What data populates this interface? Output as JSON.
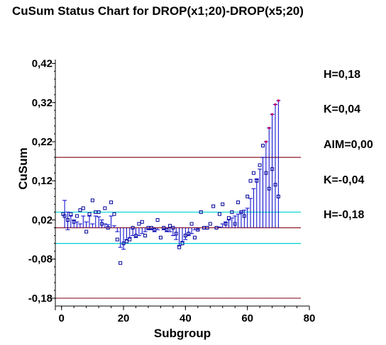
{
  "chart_data": {
    "type": "line",
    "title": "CuSum Status Chart for DROP(x1;20)-DROP(x5;20)",
    "xlabel": "Subgroup",
    "ylabel": "CuSum",
    "xlim": [
      -2,
      80
    ],
    "ylim": [
      -0.2,
      0.43
    ],
    "x_ticks": [
      0,
      20,
      40,
      60,
      80
    ],
    "x_tick_labels": [
      "0",
      "20",
      "40",
      "60",
      "80"
    ],
    "y_ticks": [
      -0.18,
      -0.08,
      0.02,
      0.12,
      0.22,
      0.32,
      0.42
    ],
    "y_tick_labels": [
      "-0,18",
      "-0,08",
      "0,02",
      "0,12",
      "0,22",
      "0,32",
      "0,42"
    ],
    "control_lines": [
      {
        "label": "H=0,18",
        "value": 0.18,
        "color": "#8b1a2b"
      },
      {
        "label": "K=0,04",
        "value": 0.04,
        "color": "#00d2d2"
      },
      {
        "label": "AIM=0,00",
        "value": 0.0,
        "color": "#8b1a2b"
      },
      {
        "label": "K=-0,04",
        "value": -0.04,
        "color": "#00d2d2"
      },
      {
        "label": "H=-0,18",
        "value": -0.18,
        "color": "#8b1a2b"
      }
    ],
    "series": [
      {
        "values_upper_x": [
          1,
          2,
          3,
          4,
          5,
          6,
          7,
          8,
          9,
          10,
          11,
          12,
          13,
          14,
          15,
          16,
          17,
          18,
          19,
          20,
          21,
          22,
          23,
          24,
          25,
          26,
          27,
          28,
          29,
          30,
          31,
          32,
          33,
          34,
          35,
          36,
          37,
          38,
          39,
          40,
          41,
          42,
          43,
          44,
          45,
          46,
          47,
          48,
          49,
          50,
          51,
          52,
          53,
          54,
          55,
          56,
          57,
          58,
          59,
          60,
          61,
          62,
          63,
          64,
          65,
          66,
          67,
          68,
          69,
          70
        ],
        "upper": [
          0.07,
          0.04,
          0.03,
          0.02,
          0.015,
          0.01,
          0.03,
          0.015,
          0.03,
          0.01,
          0.03,
          0.028,
          0.02,
          0.01,
          0.008,
          0.03,
          0.005,
          0.0,
          0.0,
          0.0,
          0.0,
          0.0,
          0.0,
          0.0,
          0.0,
          0.0,
          0.0,
          0.0,
          0.0,
          0.0,
          0.0,
          0.0,
          0.0,
          0.0,
          0.0,
          0.0,
          0.0,
          0.0,
          0.0,
          0.0,
          0.0,
          0.0,
          0.0,
          0.0,
          0.0,
          0.0,
          0.0,
          0.0,
          0.0,
          0.0,
          0.002,
          0.01,
          0.015,
          0.02,
          0.025,
          0.03,
          0.035,
          0.04,
          0.045,
          0.05,
          0.075,
          0.1,
          0.125,
          0.15,
          0.18,
          0.22,
          0.255,
          0.29,
          0.315,
          0.325
        ],
        "lower": [
          0.0,
          -0.005,
          0.0,
          0.0,
          0.0,
          0.0,
          0.0,
          0.0,
          0.0,
          0.0,
          0.0,
          0.0,
          0.0,
          0.0,
          0.0,
          0.0,
          0.0,
          -0.01,
          -0.05,
          -0.055,
          -0.03,
          -0.025,
          -0.02,
          -0.025,
          -0.02,
          -0.015,
          -0.01,
          -0.005,
          -0.005,
          -0.01,
          -0.005,
          0.0,
          -0.005,
          -0.01,
          -0.01,
          -0.02,
          -0.03,
          -0.045,
          -0.035,
          -0.03,
          -0.02,
          -0.015,
          -0.005,
          -0.005,
          0.0,
          0.0,
          0.0,
          0.0,
          0.0,
          0.0,
          0.0,
          0.0,
          0.0,
          0.0,
          0.0,
          0.0,
          0.0,
          0.0,
          0.0,
          0.0,
          0.0,
          0.0,
          0.0,
          0.0,
          0.0,
          0.0,
          0.0,
          0.0,
          0.0,
          0.0
        ]
      }
    ],
    "points": [
      [
        0.5,
        0.035
      ],
      [
        1,
        0.03
      ],
      [
        2,
        0.02
      ],
      [
        3,
        0.035
      ],
      [
        4,
        0.015
      ],
      [
        5,
        0.03
      ],
      [
        6,
        0.045
      ],
      [
        7,
        0.05
      ],
      [
        8,
        -0.01
      ],
      [
        9,
        0.035
      ],
      [
        10,
        0.07
      ],
      [
        11,
        0.04
      ],
      [
        12,
        0.04
      ],
      [
        13,
        0.01
      ],
      [
        14,
        0.05
      ],
      [
        15,
        0.0
      ],
      [
        16,
        0.065
      ],
      [
        17,
        0.035
      ],
      [
        18,
        -0.03
      ],
      [
        19,
        -0.09
      ],
      [
        20,
        -0.04
      ],
      [
        21,
        -0.035
      ],
      [
        22,
        -0.03
      ],
      [
        23,
        0.0
      ],
      [
        24,
        -0.02
      ],
      [
        25,
        0.01
      ],
      [
        26,
        0.015
      ],
      [
        27,
        -0.02
      ],
      [
        28,
        0.0
      ],
      [
        29,
        0.0
      ],
      [
        30,
        -0.005
      ],
      [
        31,
        0.02
      ],
      [
        32,
        -0.025
      ],
      [
        33,
        0.0
      ],
      [
        34,
        -0.005
      ],
      [
        35,
        0.005
      ],
      [
        36,
        0.0
      ],
      [
        37,
        -0.015
      ],
      [
        38,
        -0.05
      ],
      [
        39,
        -0.04
      ],
      [
        40,
        -0.02
      ],
      [
        41,
        -0.015
      ],
      [
        42,
        0.01
      ],
      [
        43,
        -0.025
      ],
      [
        44,
        -0.005
      ],
      [
        45,
        0.04
      ],
      [
        46,
        0.0
      ],
      [
        47,
        0.0
      ],
      [
        48,
        0.01
      ],
      [
        49,
        0.055
      ],
      [
        50,
        0.0
      ],
      [
        51,
        0.035
      ],
      [
        52,
        0.06
      ],
      [
        53,
        0.01
      ],
      [
        54,
        0.025
      ],
      [
        55,
        0.04
      ],
      [
        56,
        0.01
      ],
      [
        57,
        0.065
      ],
      [
        58,
        0.04
      ],
      [
        59,
        0.03
      ],
      [
        60,
        0.08
      ],
      [
        61,
        0.12
      ],
      [
        62,
        0.14
      ],
      [
        63,
        0.12
      ],
      [
        64,
        0.16
      ],
      [
        65,
        0.21
      ],
      [
        66,
        0.14
      ],
      [
        67,
        0.1
      ],
      [
        68,
        0.15
      ],
      [
        69,
        0.11
      ],
      [
        70,
        0.08
      ]
    ],
    "colors": {
      "stem": "#0000cc",
      "point": "#000099",
      "spike_marker": "#cc0066",
      "limit": "#8b1a2b",
      "k_line": "#00d2d2"
    }
  }
}
